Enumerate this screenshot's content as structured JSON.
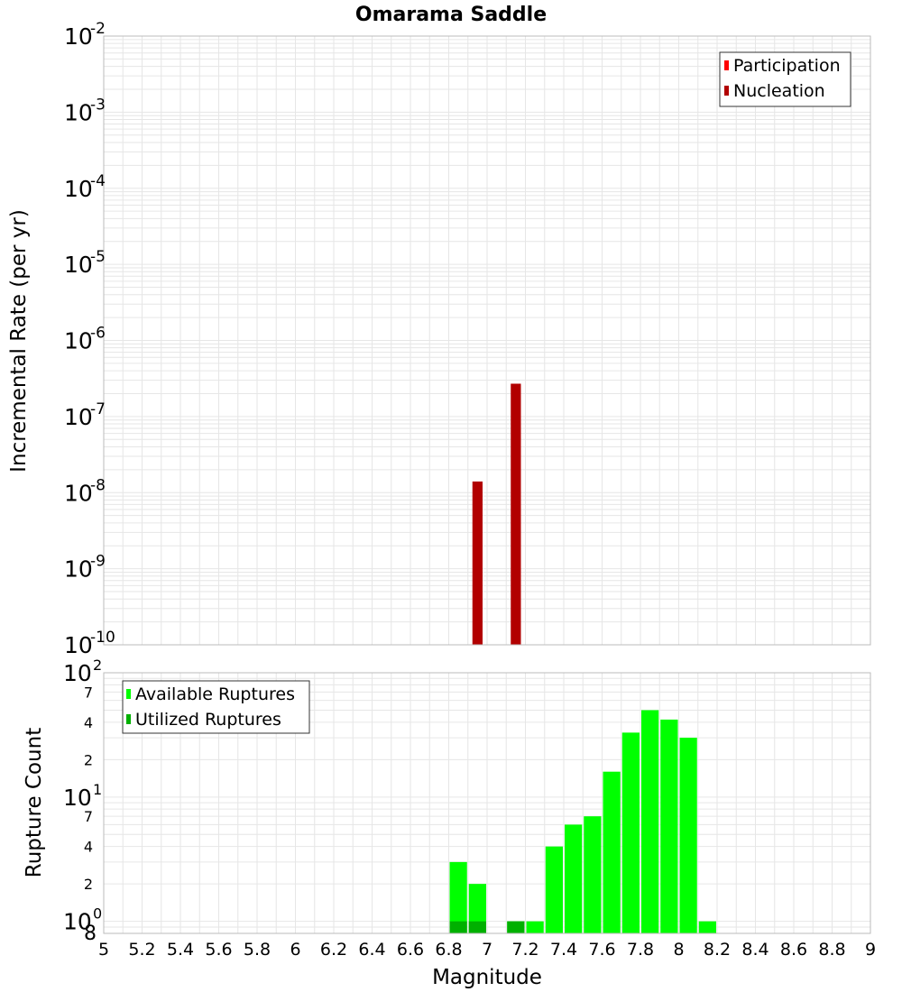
{
  "title": "Omarama Saddle",
  "colors": {
    "participation": "#ff0000",
    "nucleation": "#b20000",
    "available": "#00ff00",
    "utilized": "#00b000",
    "grid": "#e6e6e6",
    "border": "#bbbbbb"
  },
  "chart_data": [
    {
      "type": "bar",
      "title": "Omarama Saddle",
      "xlabel": "",
      "ylabel": "Incremental Rate (per yr)",
      "xlim": [
        5,
        9
      ],
      "ylim": [
        1e-10,
        0.01
      ],
      "yscale": "log",
      "grid": true,
      "legend_position": "top-right",
      "legend": [
        "Participation",
        "Nucleation"
      ],
      "bar_width": 0.1,
      "series": [
        {
          "name": "Participation",
          "x": [],
          "values": []
        },
        {
          "name": "Nucleation",
          "x": [
            6.95,
            7.15
          ],
          "values": [
            1.4e-08,
            2.7e-07
          ]
        }
      ]
    },
    {
      "type": "bar",
      "xlabel": "Magnitude",
      "ylabel": "Rupture Count",
      "xlim": [
        5,
        9
      ],
      "ylim": [
        0.8,
        100
      ],
      "yscale": "log",
      "grid": true,
      "legend_position": "top-left",
      "legend": [
        "Available Ruptures",
        "Utilized Ruptures"
      ],
      "bar_width": 0.1,
      "series": [
        {
          "name": "Available Ruptures",
          "x": [
            6.85,
            6.95,
            7.15,
            7.25,
            7.35,
            7.45,
            7.55,
            7.65,
            7.75,
            7.85,
            7.95,
            8.05,
            8.15
          ],
          "values": [
            3,
            2,
            1,
            1,
            4,
            6,
            7,
            16,
            33,
            50,
            42,
            30,
            1
          ]
        },
        {
          "name": "Utilized Ruptures",
          "x": [
            6.85,
            6.95,
            7.15
          ],
          "values": [
            1,
            1,
            1
          ]
        }
      ]
    }
  ],
  "axes": {
    "x_ticks": [
      "5",
      "5.2",
      "5.4",
      "5.6",
      "5.8",
      "6",
      "6.2",
      "6.4",
      "6.6",
      "6.8",
      "7",
      "7.2",
      "7.4",
      "7.6",
      "7.8",
      "8",
      "8.2",
      "8.4",
      "8.6",
      "8.8",
      "9"
    ],
    "top_y_ticks": [
      {
        "base": "10",
        "exp": "-2"
      },
      {
        "base": "10",
        "exp": "-3"
      },
      {
        "base": "10",
        "exp": "-4"
      },
      {
        "base": "10",
        "exp": "-5"
      },
      {
        "base": "10",
        "exp": "-6"
      },
      {
        "base": "10",
        "exp": "-7"
      },
      {
        "base": "10",
        "exp": "-8"
      },
      {
        "base": "10",
        "exp": "-9"
      },
      {
        "base": "10",
        "exp": "-10"
      }
    ],
    "bottom_y_major": [
      {
        "base": "10",
        "exp": "2"
      },
      {
        "base": "10",
        "exp": "1"
      },
      {
        "base": "10",
        "exp": "0"
      }
    ],
    "bottom_y_minor": [
      "7",
      "4",
      "2",
      "7",
      "4",
      "2",
      "8"
    ]
  }
}
